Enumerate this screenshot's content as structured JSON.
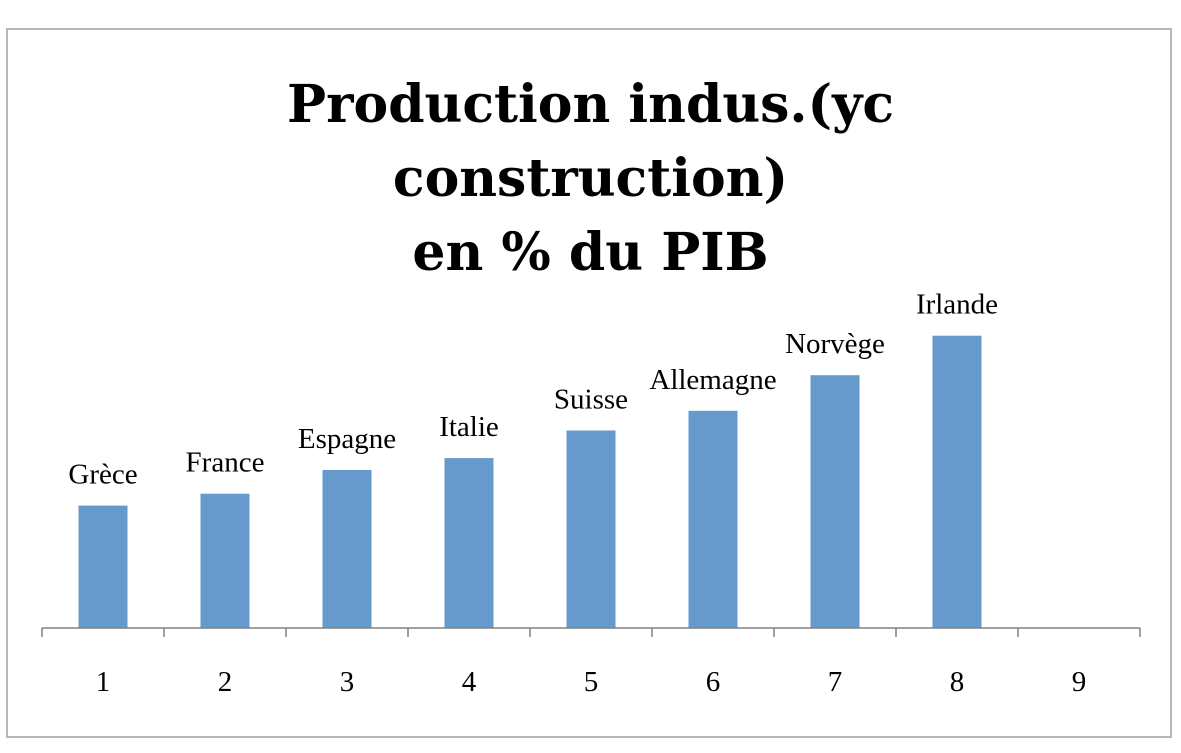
{
  "chart_data": {
    "type": "bar",
    "title_lines": [
      "Production indus.(yc",
      "construction)",
      "en % du PIB"
    ],
    "xlabel": "",
    "ylabel": "",
    "categories": [
      "1",
      "2",
      "3",
      "4",
      "5",
      "6",
      "7",
      "8",
      "9"
    ],
    "series": [
      {
        "values": [
          15.5,
          17.0,
          20.0,
          21.5,
          25.0,
          27.5,
          32.0,
          37.0,
          null
        ],
        "data_labels": [
          "Grèce",
          "France",
          "Espagne",
          "Italie",
          "Suisse",
          "Allemagne",
          "Norvège",
          "Irlande",
          ""
        ]
      }
    ],
    "ylim": [
      0,
      75
    ],
    "grid": false,
    "legend": "none",
    "bar_color": "#6699cc",
    "axis_color": "#808080"
  }
}
